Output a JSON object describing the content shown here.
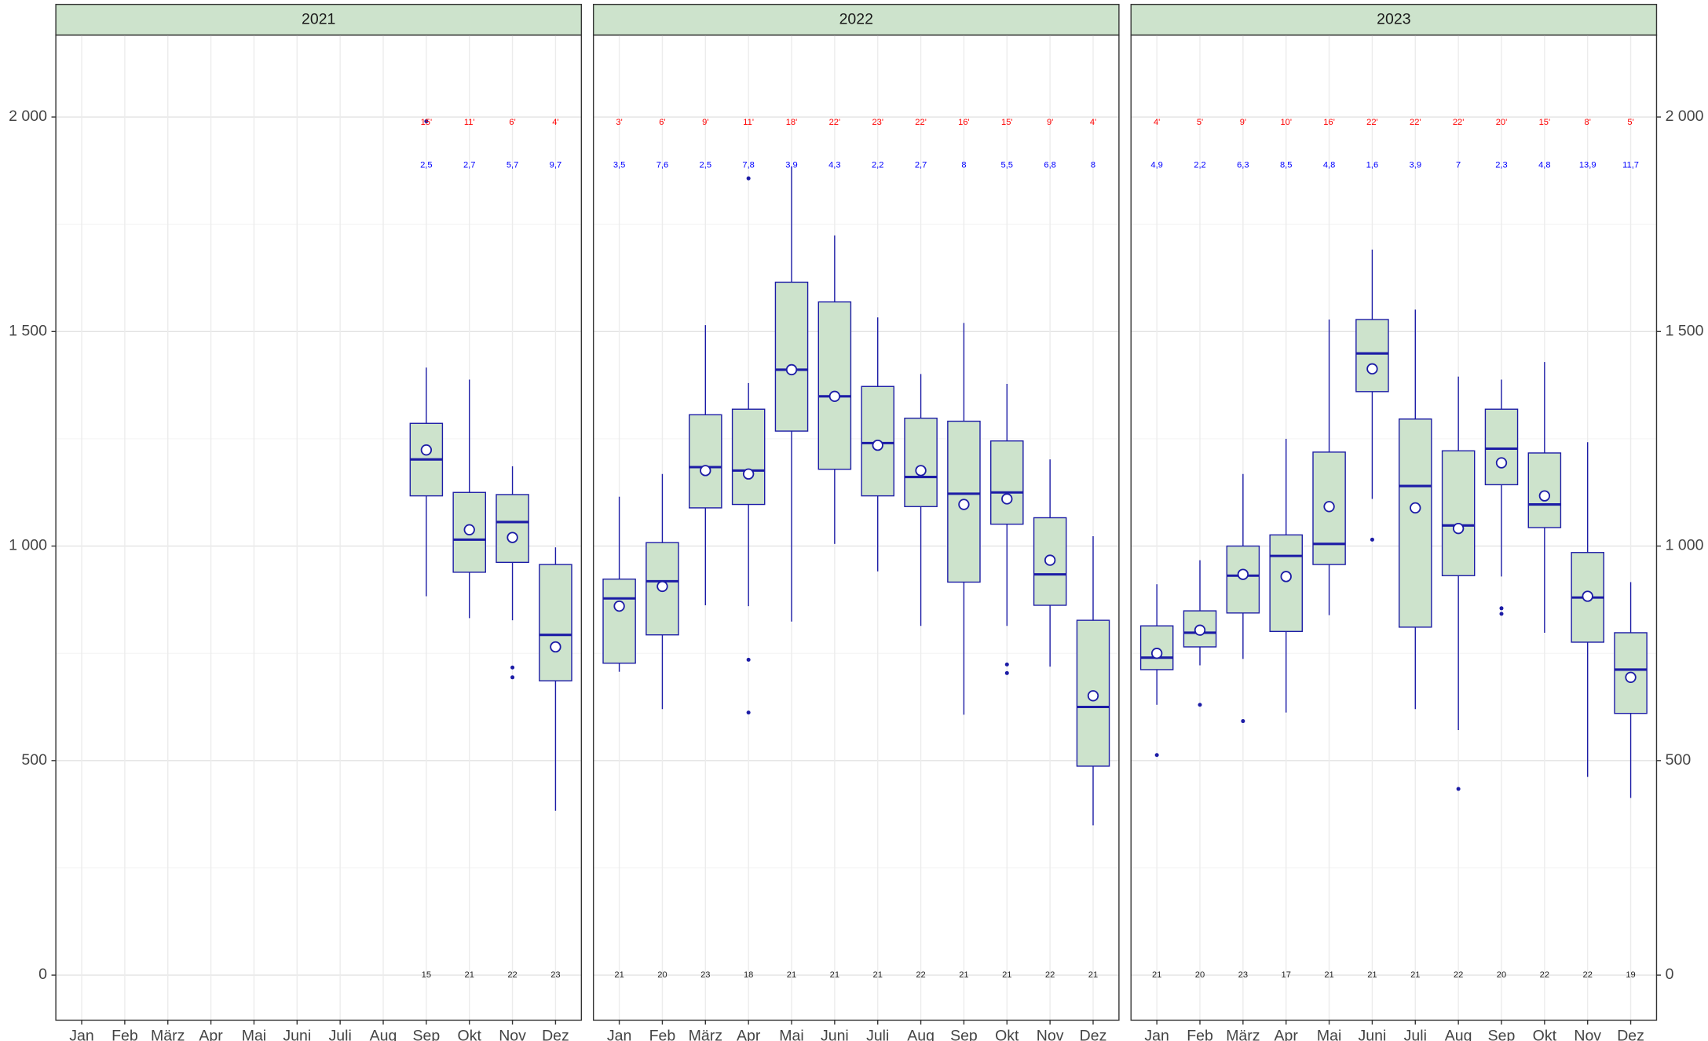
{
  "chart_data": [
    {
      "type": "box",
      "title": "2021",
      "y_axis": "left",
      "categories": [
        "Jan",
        "Feb",
        "März",
        "Apr",
        "Mai",
        "Juni",
        "Juli",
        "Aug",
        "Sep",
        "Okt",
        "Nov",
        "Dez"
      ],
      "whisker_low": [
        null,
        null,
        null,
        null,
        null,
        null,
        null,
        null,
        883,
        832,
        827,
        383
      ],
      "q1": [
        null,
        null,
        null,
        null,
        null,
        null,
        null,
        null,
        1117,
        939,
        962,
        686
      ],
      "median": [
        null,
        null,
        null,
        null,
        null,
        null,
        null,
        null,
        1202,
        1015,
        1056,
        793
      ],
      "q3": [
        null,
        null,
        null,
        null,
        null,
        null,
        null,
        null,
        1286,
        1125,
        1120,
        957
      ],
      "whisker_high": [
        null,
        null,
        null,
        null,
        null,
        null,
        null,
        null,
        1416,
        1388,
        1186,
        997
      ],
      "mean": [
        null,
        null,
        null,
        null,
        null,
        null,
        null,
        null,
        1224,
        1038,
        1020,
        765
      ],
      "outliers": [
        [],
        [],
        [],
        [],
        [],
        [],
        [],
        [],
        [
          1990
        ],
        [],
        [
          717,
          694
        ],
        []
      ],
      "top_labels": [
        null,
        null,
        null,
        null,
        null,
        null,
        null,
        null,
        "15'",
        "11'",
        "6'",
        "4'"
      ],
      "mid_labels": [
        null,
        null,
        null,
        null,
        null,
        null,
        null,
        null,
        "2,5",
        "2,7",
        "5,7",
        "9,7"
      ],
      "counts": [
        null,
        null,
        null,
        null,
        null,
        null,
        null,
        null,
        15,
        21,
        22,
        23
      ],
      "color": "#cde3cc",
      "line_color": "#1c1ca6",
      "top_color": "#ff0000",
      "mid_color": "#0000ff",
      "ylim": [
        -105,
        2191
      ],
      "yticks": [
        0,
        500,
        {
          "value": 1000,
          "label": "1 000"
        },
        {
          "value": 1500,
          "label": "1 500"
        },
        {
          "value": 2000,
          "label": "2 000"
        }
      ],
      "minor_yticks": [
        250,
        750,
        1250,
        1750
      ],
      "grid": true
    },
    {
      "type": "box",
      "title": "2022",
      "categories": [
        "Jan",
        "Feb",
        "März",
        "Apr",
        "Mai",
        "Juni",
        "Juli",
        "Aug",
        "Sep",
        "Okt",
        "Nov",
        "Dez"
      ],
      "whisker_low": [
        707,
        620,
        862,
        860,
        824,
        1005,
        941,
        814,
        607,
        814,
        719,
        349
      ],
      "q1": [
        727,
        793,
        1089,
        1097,
        1268,
        1179,
        1117,
        1092,
        916,
        1051,
        862,
        487
      ],
      "median": [
        878,
        918,
        1184,
        1176,
        1411,
        1349,
        1240,
        1161,
        1122,
        1125,
        934,
        625
      ],
      "q3": [
        923,
        1008,
        1306,
        1319,
        1615,
        1569,
        1372,
        1298,
        1291,
        1245,
        1066,
        827
      ],
      "whisker_high": [
        1115,
        1168,
        1515,
        1380,
        1885,
        1724,
        1533,
        1401,
        1520,
        1378,
        1202,
        1023
      ],
      "mean": [
        860,
        906,
        1176,
        1168,
        1411,
        1349,
        1235,
        1176,
        1097,
        1110,
        967,
        651
      ],
      "outliers": [
        [],
        [],
        [],
        [
          1857,
          735,
          612
        ],
        [],
        [],
        [],
        [],
        [],
        [
          724,
          704
        ],
        [],
        []
      ],
      "top_labels": [
        "3'",
        "6'",
        "9'",
        "11'",
        "18'",
        "22'",
        "23'",
        "22'",
        "16'",
        "15'",
        "9'",
        "4'"
      ],
      "mid_labels": [
        "3,5",
        "7,6",
        "2,5",
        "7,8",
        "3,9",
        "4,3",
        "2,2",
        "2,7",
        "8",
        "5,5",
        "6,8",
        "8"
      ],
      "counts": [
        21,
        20,
        23,
        18,
        21,
        21,
        21,
        22,
        21,
        21,
        22,
        21
      ],
      "color": "#cde3cc",
      "line_color": "#1c1ca6",
      "top_color": "#ff0000",
      "mid_color": "#0000ff",
      "ylim": [
        -105,
        2191
      ],
      "yticks": [
        0,
        500,
        {
          "value": 1000,
          "label": "1 000"
        },
        {
          "value": 1500,
          "label": "1 500"
        },
        {
          "value": 2000,
          "label": "2 000"
        }
      ],
      "minor_yticks": [
        250,
        750,
        1250,
        1750
      ],
      "grid": true
    },
    {
      "type": "box",
      "title": "2023",
      "y_axis": "right",
      "categories": [
        "Jan",
        "Feb",
        "März",
        "Apr",
        "Mai",
        "Juni",
        "Juli",
        "Aug",
        "Sep",
        "Okt",
        "Nov",
        "Dez"
      ],
      "whisker_low": [
        630,
        722,
        737,
        612,
        839,
        1110,
        620,
        571,
        929,
        798,
        462,
        413
      ],
      "q1": [
        712,
        765,
        844,
        801,
        957,
        1360,
        811,
        931,
        1143,
        1043,
        776,
        610
      ],
      "median": [
        740,
        798,
        931,
        977,
        1005,
        1449,
        1140,
        1048,
        1227,
        1097,
        880,
        712
      ],
      "q3": [
        814,
        849,
        1000,
        1026,
        1219,
        1528,
        1296,
        1222,
        1319,
        1217,
        985,
        798
      ],
      "whisker_high": [
        911,
        967,
        1168,
        1250,
        1528,
        1691,
        1551,
        1395,
        1388,
        1429,
        1242,
        916
      ],
      "mean": [
        750,
        804,
        934,
        929,
        1092,
        1413,
        1089,
        1041,
        1194,
        1117,
        883,
        694
      ],
      "outliers": [
        [
          513
        ],
        [
          630
        ],
        [
          592
        ],
        [],
        [],
        [
          1015
        ],
        [],
        [
          434
        ],
        [
          855,
          842
        ],
        [],
        [],
        []
      ],
      "top_labels": [
        "4'",
        "5'",
        "9'",
        "10'",
        "16'",
        "22'",
        "22'",
        "22'",
        "20'",
        "15'",
        "8'",
        "5'"
      ],
      "mid_labels": [
        "4,9",
        "2,2",
        "6,3",
        "8,5",
        "4,8",
        "1,6",
        "3,9",
        "7",
        "2,3",
        "4,8",
        "13,9",
        "11,7"
      ],
      "counts": [
        21,
        20,
        23,
        17,
        21,
        21,
        21,
        22,
        20,
        22,
        22,
        19
      ],
      "color": "#cde3cc",
      "line_color": "#1c1ca6",
      "top_color": "#ff0000",
      "mid_color": "#0000ff",
      "ylim": [
        -105,
        2191
      ],
      "yticks": [
        0,
        500,
        {
          "value": 1000,
          "label": "1 000"
        },
        {
          "value": 1500,
          "label": "1 500"
        },
        {
          "value": 2000,
          "label": "2 000"
        }
      ],
      "minor_yticks": [
        250,
        750,
        1250,
        1750
      ],
      "grid": true
    }
  ]
}
